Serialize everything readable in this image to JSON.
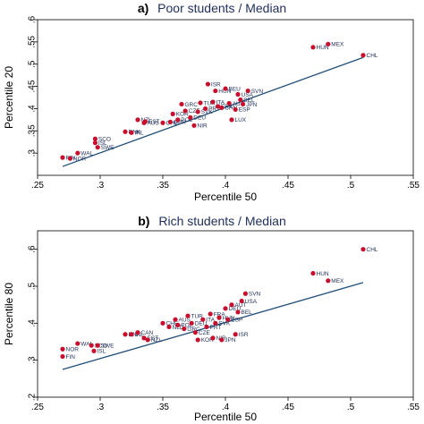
{
  "chart_data": [
    {
      "type": "scatter",
      "panel_letter": "a)",
      "title": "Poor students / Median",
      "xlabel": "Percentile 50",
      "ylabel": "Percentile 20",
      "xlim": [
        0.25,
        0.55
      ],
      "ylim": [
        0.25,
        0.6
      ],
      "xticks": [
        0.25,
        0.3,
        0.35,
        0.4,
        0.45,
        0.5,
        0.55
      ],
      "xtick_labels": [
        ".25",
        ".3",
        ".35",
        ".4",
        ".45",
        ".5",
        ".55"
      ],
      "yticks": [
        0.3,
        0.35,
        0.4,
        0.45,
        0.5,
        0.55,
        0.6
      ],
      "ytick_labels": [
        ".3",
        ".35",
        ".4",
        ".45",
        ".5",
        ".55",
        ".6"
      ],
      "grid": false,
      "point_color": "#c8102e",
      "line_color": "#1f4e79",
      "fit_line": {
        "x": [
          0.27,
          0.51
        ],
        "y": [
          0.27,
          0.515
        ]
      },
      "points": [
        {
          "x": 0.27,
          "y": 0.29,
          "label": "FIN"
        },
        {
          "x": 0.276,
          "y": 0.288,
          "label": "NOR"
        },
        {
          "x": 0.282,
          "y": 0.3,
          "label": "WAL"
        },
        {
          "x": 0.296,
          "y": 0.323,
          "label": "ISL"
        },
        {
          "x": 0.296,
          "y": 0.332,
          "label": "SCO"
        },
        {
          "x": 0.298,
          "y": 0.313,
          "label": "SWE"
        },
        {
          "x": 0.32,
          "y": 0.348,
          "label": "DNK"
        },
        {
          "x": 0.325,
          "y": 0.346,
          "label": "IRL"
        },
        {
          "x": 0.33,
          "y": 0.375,
          "label": "NZL"
        },
        {
          "x": 0.335,
          "y": 0.368,
          "label": "AUS"
        },
        {
          "x": 0.336,
          "y": 0.371,
          "label": "EST"
        },
        {
          "x": 0.35,
          "y": 0.368,
          "label": "CHE"
        },
        {
          "x": 0.356,
          "y": 0.37,
          "label": "GBR"
        },
        {
          "x": 0.358,
          "y": 0.388,
          "label": "KOR"
        },
        {
          "x": 0.362,
          "y": 0.375,
          "label": "POL"
        },
        {
          "x": 0.365,
          "y": 0.41,
          "label": "GRC"
        },
        {
          "x": 0.368,
          "y": 0.395,
          "label": "CZE"
        },
        {
          "x": 0.372,
          "y": 0.38,
          "label": "DEU"
        },
        {
          "x": 0.375,
          "y": 0.362,
          "label": "NIR"
        },
        {
          "x": 0.378,
          "y": 0.393,
          "label": "SVK"
        },
        {
          "x": 0.38,
          "y": 0.413,
          "label": "TUR"
        },
        {
          "x": 0.384,
          "y": 0.4,
          "label": "PRT"
        },
        {
          "x": 0.386,
          "y": 0.455,
          "label": "ISR"
        },
        {
          "x": 0.39,
          "y": 0.415,
          "label": "ITA"
        },
        {
          "x": 0.392,
          "y": 0.44,
          "label": "HUN"
        },
        {
          "x": 0.394,
          "y": 0.405,
          "label": "FRA"
        },
        {
          "x": 0.397,
          "y": 0.402,
          "label": "CAN"
        },
        {
          "x": 0.4,
          "y": 0.445,
          "label": "BEU"
        },
        {
          "x": 0.403,
          "y": 0.412,
          "label": "AUT"
        },
        {
          "x": 0.405,
          "y": 0.375,
          "label": "LUX"
        },
        {
          "x": 0.408,
          "y": 0.398,
          "label": "ESP"
        },
        {
          "x": 0.41,
          "y": 0.432,
          "label": "USA"
        },
        {
          "x": 0.412,
          "y": 0.42,
          "label": "BEL"
        },
        {
          "x": 0.414,
          "y": 0.41,
          "label": "JPN"
        },
        {
          "x": 0.418,
          "y": 0.44,
          "label": "SVN"
        },
        {
          "x": 0.47,
          "y": 0.538,
          "label": "HUN"
        },
        {
          "x": 0.482,
          "y": 0.545,
          "label": "MEX"
        },
        {
          "x": 0.51,
          "y": 0.52,
          "label": "CHL"
        }
      ]
    },
    {
      "type": "scatter",
      "panel_letter": "b)",
      "title": "Rich students / Median",
      "xlabel": "Percentile 50",
      "ylabel": "Percentile 80",
      "xlim": [
        0.25,
        0.55
      ],
      "ylim": [
        0.2,
        0.65
      ],
      "xticks": [
        0.25,
        0.3,
        0.35,
        0.4,
        0.45,
        0.5,
        0.55
      ],
      "xtick_labels": [
        ".25",
        ".3",
        ".35",
        ".4",
        ".45",
        ".5",
        ".55"
      ],
      "yticks": [
        0.2,
        0.3,
        0.4,
        0.5,
        0.6
      ],
      "ytick_labels": [
        ".2",
        ".3",
        ".4",
        ".5",
        ".6"
      ],
      "grid": false,
      "point_color": "#c8102e",
      "line_color": "#1f4e79",
      "fit_line": {
        "x": [
          0.27,
          0.51
        ],
        "y": [
          0.275,
          0.51
        ]
      },
      "points": [
        {
          "x": 0.27,
          "y": 0.31,
          "label": "FIN"
        },
        {
          "x": 0.27,
          "y": 0.33,
          "label": "NOR"
        },
        {
          "x": 0.282,
          "y": 0.345,
          "label": "WAL"
        },
        {
          "x": 0.293,
          "y": 0.34,
          "label": "SCO"
        },
        {
          "x": 0.295,
          "y": 0.325,
          "label": "ISL"
        },
        {
          "x": 0.298,
          "y": 0.34,
          "label": "SWE"
        },
        {
          "x": 0.32,
          "y": 0.37,
          "label": "DNK"
        },
        {
          "x": 0.325,
          "y": 0.37,
          "label": "IRL"
        },
        {
          "x": 0.33,
          "y": 0.375,
          "label": "CAN"
        },
        {
          "x": 0.335,
          "y": 0.36,
          "label": "EST"
        },
        {
          "x": 0.338,
          "y": 0.355,
          "label": "NZL"
        },
        {
          "x": 0.35,
          "y": 0.4,
          "label": "CHE"
        },
        {
          "x": 0.355,
          "y": 0.39,
          "label": "NLD"
        },
        {
          "x": 0.36,
          "y": 0.41,
          "label": "AUS"
        },
        {
          "x": 0.362,
          "y": 0.395,
          "label": "POL"
        },
        {
          "x": 0.367,
          "y": 0.385,
          "label": "GRC"
        },
        {
          "x": 0.37,
          "y": 0.42,
          "label": "TUR"
        },
        {
          "x": 0.373,
          "y": 0.4,
          "label": "DEU"
        },
        {
          "x": 0.376,
          "y": 0.375,
          "label": "CZE"
        },
        {
          "x": 0.378,
          "y": 0.355,
          "label": "KOR"
        },
        {
          "x": 0.382,
          "y": 0.41,
          "label": "ITA"
        },
        {
          "x": 0.385,
          "y": 0.39,
          "label": "PRT"
        },
        {
          "x": 0.388,
          "y": 0.425,
          "label": "FRA"
        },
        {
          "x": 0.39,
          "y": 0.36,
          "label": "NIR"
        },
        {
          "x": 0.392,
          "y": 0.4,
          "label": "SVK"
        },
        {
          "x": 0.395,
          "y": 0.415,
          "label": "HUN"
        },
        {
          "x": 0.397,
          "y": 0.355,
          "label": "JPN"
        },
        {
          "x": 0.4,
          "y": 0.44,
          "label": "DEU"
        },
        {
          "x": 0.402,
          "y": 0.41,
          "label": "ESP"
        },
        {
          "x": 0.405,
          "y": 0.45,
          "label": "AUT"
        },
        {
          "x": 0.408,
          "y": 0.37,
          "label": "ISR"
        },
        {
          "x": 0.41,
          "y": 0.43,
          "label": "BEL"
        },
        {
          "x": 0.413,
          "y": 0.46,
          "label": "USA"
        },
        {
          "x": 0.416,
          "y": 0.48,
          "label": "SVN"
        },
        {
          "x": 0.47,
          "y": 0.535,
          "label": "HUN"
        },
        {
          "x": 0.482,
          "y": 0.515,
          "label": "MEX"
        },
        {
          "x": 0.51,
          "y": 0.6,
          "label": "CHL"
        }
      ]
    }
  ]
}
